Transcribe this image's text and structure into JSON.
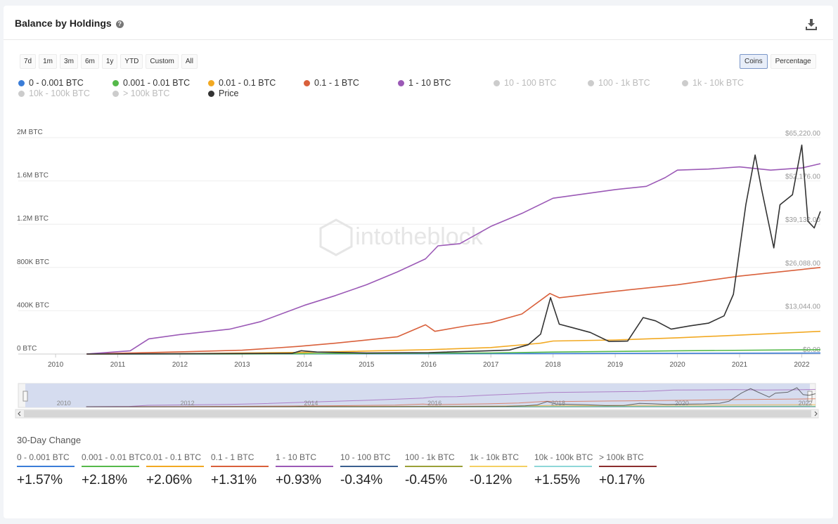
{
  "header": {
    "title": "Balance by Holdings",
    "help_icon": "question-circle-icon",
    "download_icon": "download-icon"
  },
  "range_buttons": [
    "7d",
    "1m",
    "3m",
    "6m",
    "1y",
    "YTD",
    "Custom",
    "All"
  ],
  "mode_buttons": [
    {
      "label": "Coins",
      "active": true
    },
    {
      "label": "Percentage",
      "active": false
    }
  ],
  "watermark": "intotheblock",
  "legend": [
    {
      "label": "0 - 0.001 BTC",
      "color": "#3b7dd8",
      "active": true
    },
    {
      "label": "0.001 - 0.01 BTC",
      "color": "#55b94a",
      "active": true
    },
    {
      "label": "0.01 - 0.1 BTC",
      "color": "#f2a922",
      "active": true
    },
    {
      "label": "0.1 - 1 BTC",
      "color": "#d9603b",
      "active": true
    },
    {
      "label": "1 - 10 BTC",
      "color": "#9b59b6",
      "active": true
    },
    {
      "label": "10 - 100 BTC",
      "color": "#cccccc",
      "active": false
    },
    {
      "label": "100 - 1k BTC",
      "color": "#cccccc",
      "active": false
    },
    {
      "label": "1k - 10k BTC",
      "color": "#cccccc",
      "active": false
    },
    {
      "label": "10k - 100k BTC",
      "color": "#cccccc",
      "active": false
    },
    {
      "label": "> 100k BTC",
      "color": "#cccccc",
      "active": false
    },
    {
      "label": "Price",
      "color": "#333333",
      "active": true
    }
  ],
  "chart_data": {
    "type": "line",
    "x_ticks": [
      "2010",
      "2011",
      "2012",
      "2013",
      "2014",
      "2015",
      "2016",
      "2017",
      "2018",
      "2019",
      "2020",
      "2021",
      "2022"
    ],
    "xlim": [
      2009.4,
      2022.3
    ],
    "y_left_ticks": [
      "0 BTC",
      "400K BTC",
      "800K BTC",
      "1.2M BTC",
      "1.6M BTC",
      "2M BTC"
    ],
    "y_left_lim": [
      0,
      2000000
    ],
    "y_right_ticks": [
      "$0.00",
      "$13,044.00",
      "$26,088.00",
      "$39,132.00",
      "$52,176.00",
      "$65,220.00"
    ],
    "y_right_lim": [
      0,
      65220
    ],
    "grid": true,
    "series": [
      {
        "name": "0 - 0.001 BTC",
        "axis": "left",
        "color": "#3b7dd8",
        "x": [
          2010.5,
          2014,
          2017,
          2020,
          2022.3
        ],
        "y": [
          0,
          1000,
          3000,
          6000,
          9000
        ]
      },
      {
        "name": "0.001 - 0.01 BTC",
        "axis": "left",
        "color": "#55b94a",
        "x": [
          2010.5,
          2013,
          2015,
          2017,
          2018,
          2020,
          2022.3
        ],
        "y": [
          0,
          1000,
          5000,
          10000,
          18000,
          30000,
          40000
        ]
      },
      {
        "name": "0.01 - 0.1 BTC",
        "axis": "left",
        "color": "#f2a922",
        "x": [
          2010.5,
          2012,
          2014,
          2016,
          2017,
          2017.8,
          2018,
          2019,
          2020,
          2021,
          2022.3
        ],
        "y": [
          0,
          3000,
          15000,
          40000,
          60000,
          100000,
          120000,
          130000,
          150000,
          175000,
          210000
        ]
      },
      {
        "name": "0.1 - 1 BTC",
        "axis": "left",
        "color": "#d9603b",
        "x": [
          2010.5,
          2012,
          2013,
          2013.9,
          2014.5,
          2015.5,
          2015.95,
          2016.1,
          2016.6,
          2017,
          2017.5,
          2017.95,
          2018.1,
          2019,
          2020,
          2021,
          2022.3
        ],
        "y": [
          0,
          20000,
          35000,
          70000,
          100000,
          160000,
          270000,
          210000,
          260000,
          290000,
          370000,
          560000,
          520000,
          580000,
          640000,
          720000,
          800000
        ]
      },
      {
        "name": "1 - 10 BTC",
        "axis": "left",
        "color": "#9b59b6",
        "x": [
          2010.5,
          2011.2,
          2011.5,
          2012,
          2012.8,
          2013.3,
          2014,
          2014.5,
          2015,
          2015.5,
          2015.95,
          2016.15,
          2016.5,
          2017,
          2017.5,
          2018,
          2018.5,
          2019,
          2019.5,
          2019.8,
          2020,
          2020.5,
          2021,
          2021.5,
          2022,
          2022.3
        ],
        "y": [
          0,
          30000,
          140000,
          180000,
          230000,
          300000,
          450000,
          540000,
          640000,
          760000,
          880000,
          1000000,
          1020000,
          1180000,
          1300000,
          1440000,
          1480000,
          1520000,
          1550000,
          1630000,
          1700000,
          1710000,
          1730000,
          1700000,
          1720000,
          1760000
        ]
      },
      {
        "name": "Price",
        "axis": "right",
        "color": "#333333",
        "x": [
          2010.5,
          2013.8,
          2013.95,
          2014.2,
          2015,
          2016,
          2017,
          2017.3,
          2017.6,
          2017.8,
          2017.96,
          2018.1,
          2018.3,
          2018.6,
          2018.9,
          2019.2,
          2019.45,
          2019.65,
          2019.9,
          2020.2,
          2020.5,
          2020.75,
          2020.9,
          2021.1,
          2021.25,
          2021.35,
          2021.55,
          2021.65,
          2021.85,
          2022.0,
          2022.1,
          2022.2,
          2022.3
        ],
        "y": [
          0,
          200,
          1000,
          600,
          300,
          430,
          1000,
          1200,
          2800,
          6000,
          17000,
          9000,
          8000,
          6500,
          3800,
          3900,
          11000,
          10000,
          7500,
          8500,
          9300,
          11500,
          18000,
          45000,
          60000,
          50000,
          32000,
          45000,
          48000,
          63000,
          40000,
          38000,
          43000
        ]
      }
    ]
  },
  "thirty_day": {
    "title": "30-Day Change",
    "items": [
      {
        "label": "0 - 0.001 BTC",
        "value": "+1.57%",
        "color": "#3b7dd8"
      },
      {
        "label": "0.001 - 0.01 BTC",
        "value": "+2.18%",
        "color": "#55b94a"
      },
      {
        "label": "0.01 - 0.1 BTC",
        "value": "+2.06%",
        "color": "#f2a922"
      },
      {
        "label": "0.1 - 1 BTC",
        "value": "+1.31%",
        "color": "#d9603b"
      },
      {
        "label": "1 - 10 BTC",
        "value": "+0.93%",
        "color": "#9b59b6"
      },
      {
        "label": "10 - 100 BTC",
        "value": "-0.34%",
        "color": "#3a5f8f"
      },
      {
        "label": "100 - 1k BTC",
        "value": "-0.45%",
        "color": "#9aa038"
      },
      {
        "label": "1k - 10k BTC",
        "value": "-0.12%",
        "color": "#f4d062"
      },
      {
        "label": "10k - 100k BTC",
        "value": "+1.55%",
        "color": "#8ed7d8"
      },
      {
        "label": "> 100k BTC",
        "value": "+0.17%",
        "color": "#8b2e2e"
      }
    ]
  }
}
